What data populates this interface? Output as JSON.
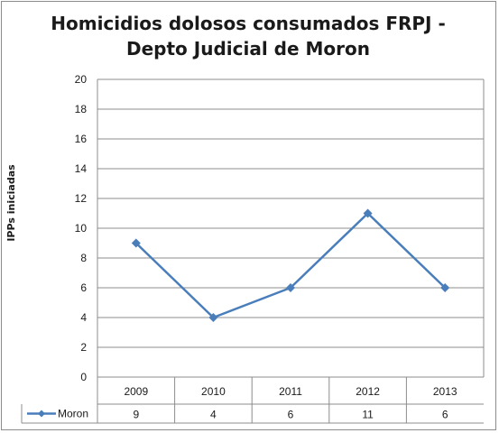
{
  "chart_data": {
    "type": "line",
    "title_lines": [
      "Homicidios dolosos consumados FRPJ -",
      "Depto Judicial de Moron"
    ],
    "ylabel": "IPPs iniciadas",
    "xlabel": "",
    "categories": [
      "2009",
      "2010",
      "2011",
      "2012",
      "2013"
    ],
    "series": [
      {
        "name": "Moron",
        "values": [
          9,
          4,
          6,
          11,
          6
        ],
        "color": "#4a7ebb"
      }
    ],
    "ylim": [
      0,
      20
    ],
    "yticks": [
      0,
      2,
      4,
      6,
      8,
      10,
      12,
      14,
      16,
      18,
      20
    ],
    "grid": true,
    "data_table": true,
    "marker": "diamond"
  }
}
